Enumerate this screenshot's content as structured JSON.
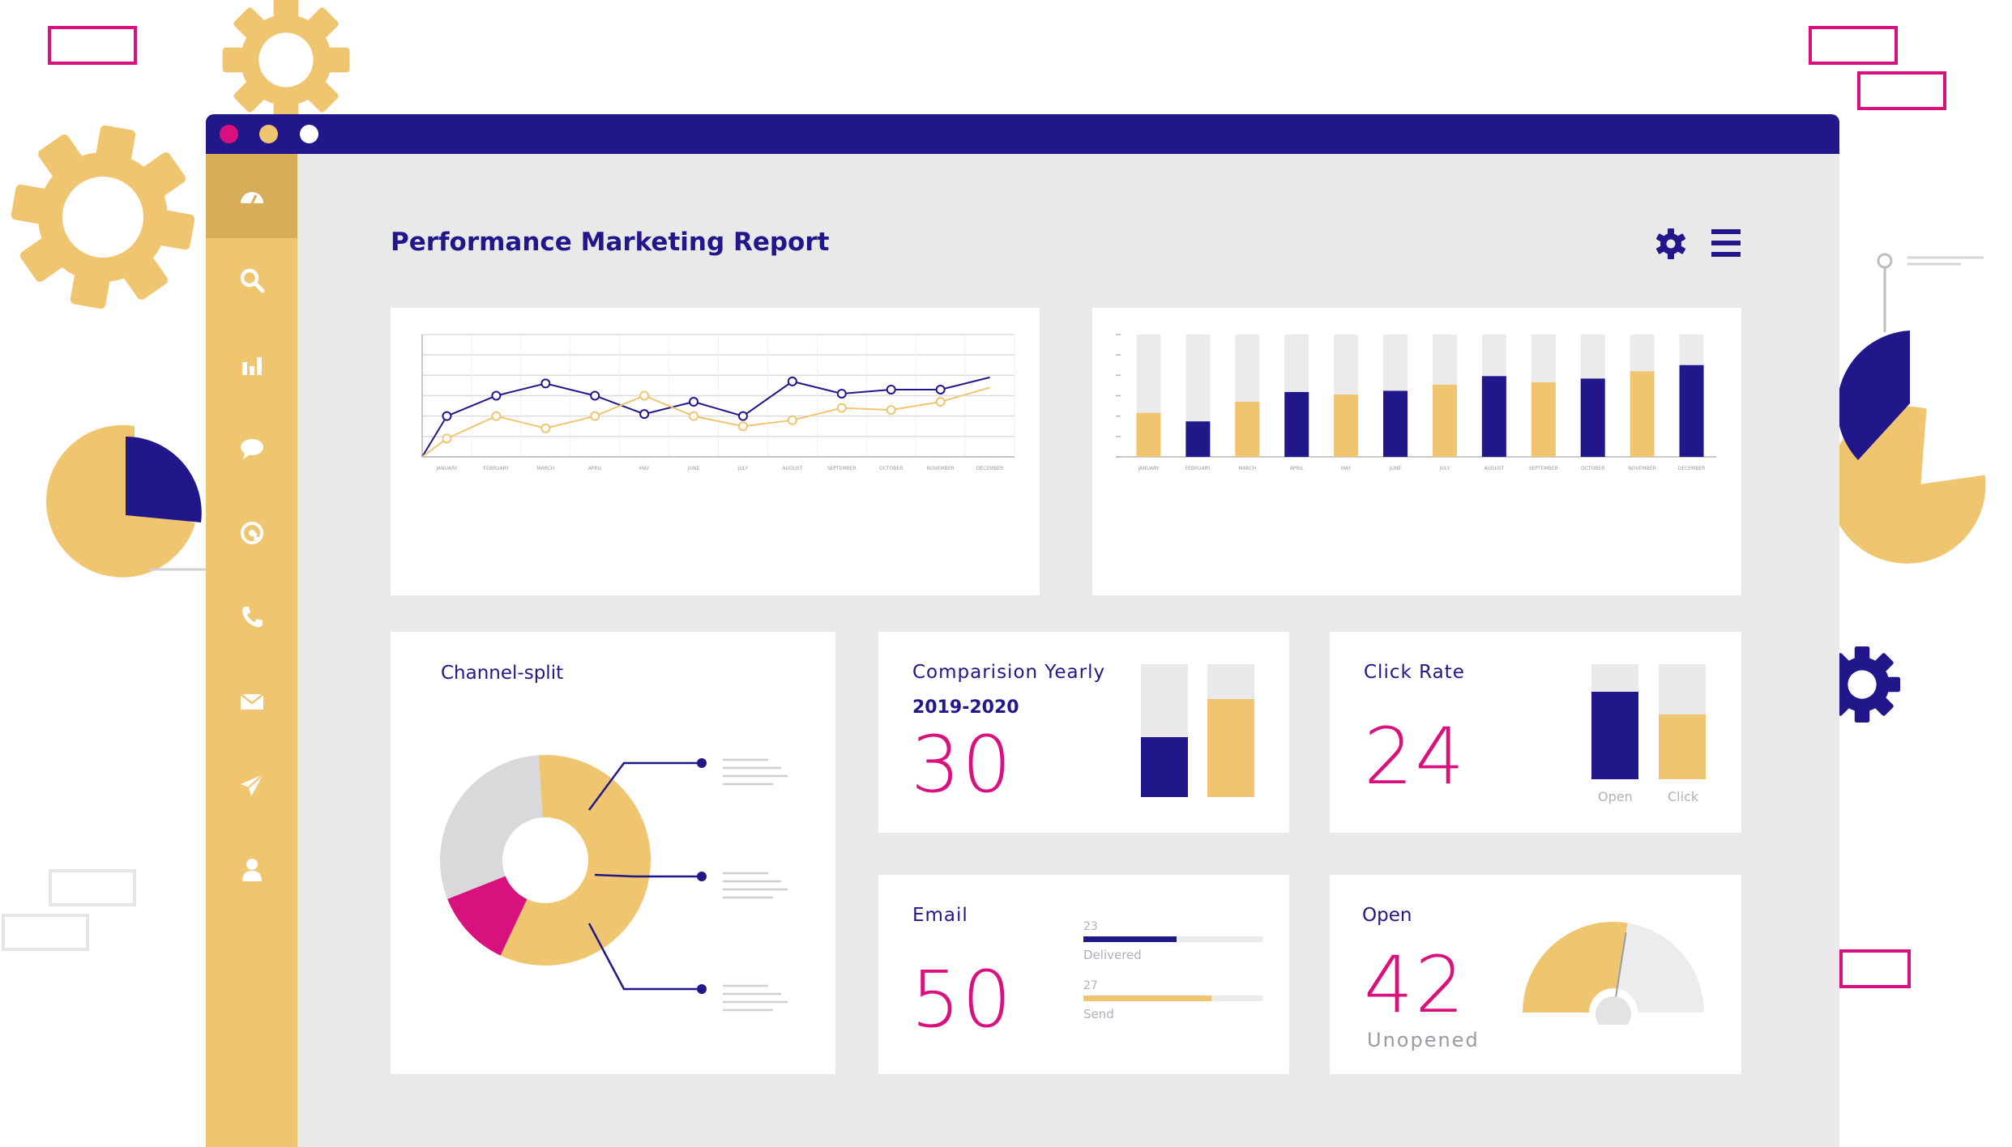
{
  "header": {
    "title": "Performance Marketing Report"
  },
  "sidebar": {
    "items": [
      {
        "icon": "dashboard-icon",
        "active": true
      },
      {
        "icon": "search-icon"
      },
      {
        "icon": "bar-chart-icon"
      },
      {
        "icon": "chat-icon"
      },
      {
        "icon": "at-sign-icon"
      },
      {
        "icon": "phone-icon"
      },
      {
        "icon": "mail-icon"
      },
      {
        "icon": "send-icon"
      },
      {
        "icon": "user-icon"
      }
    ]
  },
  "toolbar": {
    "settings_icon": "gear-icon",
    "menu_icon": "hamburger-menu-icon"
  },
  "colors": {
    "navy": "#21168a",
    "gold": "#f0c56f",
    "magenta": "#d9117f",
    "grey": "#e9e9ea"
  },
  "chart_data": [
    {
      "type": "line",
      "categories": [
        "JANUARY",
        "FEBRUARY",
        "MARCH",
        "APRIL",
        "MAY",
        "JUNE",
        "JULY",
        "AUGUST",
        "SEPTEMBER",
        "OCTOBER",
        "NOVEMBER",
        "DECEMBER"
      ],
      "series": [
        {
          "values": [
            2.0,
            3.0,
            3.6,
            3.0,
            2.1,
            2.7,
            2.0,
            3.7,
            3.1,
            3.3,
            3.3,
            3.9
          ]
        },
        {
          "values": [
            0.9,
            2.0,
            1.4,
            2.0,
            3.0,
            2.0,
            1.5,
            1.8,
            2.4,
            2.3,
            2.7,
            3.4
          ]
        }
      ],
      "ylim": [
        0,
        6
      ]
    },
    {
      "type": "bar",
      "categories": [
        "JANUARY",
        "FEBRUARY",
        "MARCH",
        "APRIL",
        "MAY",
        "JUNE",
        "JULY",
        "AUGUST",
        "SEPTEMBER",
        "OCTOBER",
        "NOVEMBER",
        "DECEMBER"
      ],
      "values": [
        36,
        29,
        45,
        53,
        51,
        54,
        59,
        66,
        61,
        64,
        70,
        75
      ],
      "bar_colors": [
        "gold",
        "navy",
        "gold",
        "navy",
        "gold",
        "navy",
        "gold",
        "navy",
        "gold",
        "navy",
        "gold",
        "navy"
      ],
      "ylim": [
        0,
        100
      ]
    },
    {
      "type": "pie",
      "title": "Channel-split",
      "slices": [
        {
          "value": 58,
          "color": "gold"
        },
        {
          "value": 12,
          "color": "magenta"
        },
        {
          "value": 30,
          "color": "lightgrey"
        }
      ]
    }
  ],
  "comparison": {
    "label": "Comparision Yearly",
    "period": "2019-2020",
    "value": "30",
    "bars": [
      {
        "fill": 0.45,
        "color": "navy"
      },
      {
        "fill": 0.74,
        "color": "gold"
      }
    ]
  },
  "click_rate": {
    "label": "Click Rate",
    "value": "24",
    "bars": [
      {
        "name": "Open",
        "fill": 0.76,
        "color": "navy"
      },
      {
        "name": "Click",
        "fill": 0.56,
        "color": "gold"
      }
    ]
  },
  "email": {
    "label": "Email",
    "value": "50",
    "rows": [
      {
        "count": "23",
        "label": "Delivered",
        "fill": 0.52
      },
      {
        "count": "27",
        "label": "Send",
        "fill": 0.71
      }
    ]
  },
  "open": {
    "label": "Open",
    "value": "42",
    "sublabel": "Unopened",
    "gauge_fill": 0.55
  }
}
